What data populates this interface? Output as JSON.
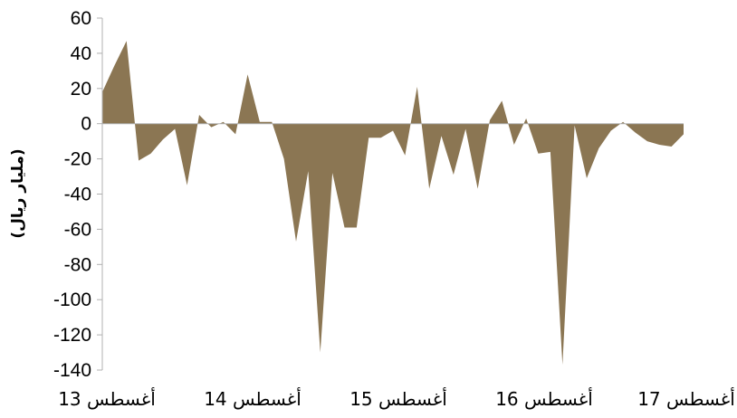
{
  "chart_data": {
    "type": "area",
    "title": "",
    "ylabel": "(مليار ريال)",
    "xlabel": "",
    "ylim": [
      -140,
      60
    ],
    "yticks": [
      60,
      40,
      20,
      0,
      -20,
      -40,
      -60,
      -80,
      -100,
      -120,
      -140
    ],
    "x_tick_labels": [
      "أغسطس 13",
      "أغسطس 14",
      "أغسطس 15",
      "أغسطس 16",
      "أغسطس 17"
    ],
    "grid": false,
    "fill_color": "#8b7653",
    "axis_color": "#b0b0b0",
    "values": [
      18,
      33,
      47,
      -21,
      -17,
      -9,
      -3,
      -35,
      5,
      -2,
      1,
      -6,
      28,
      1,
      1,
      -20,
      -67,
      -27,
      -130,
      -28,
      -59,
      -59,
      -8,
      -8,
      -4,
      -18,
      21,
      -37,
      -7,
      -29,
      -3,
      -37,
      2,
      13,
      -12,
      3,
      -17,
      -16,
      -137,
      -1,
      -31,
      -14,
      -4,
      1,
      -5,
      -10,
      -12,
      -13,
      -6
    ]
  }
}
